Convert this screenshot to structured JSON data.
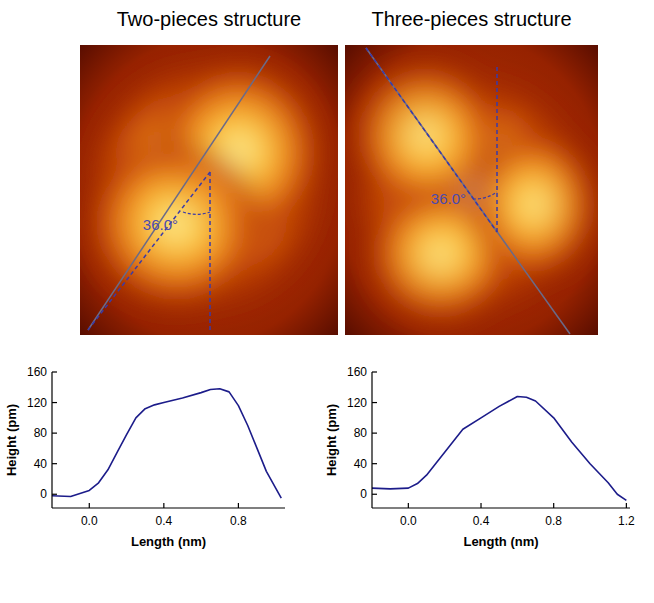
{
  "panels": [
    {
      "title": "Two-pieces structure",
      "angle_label": "36.0°"
    },
    {
      "title": "Three-pieces structure",
      "angle_label": "36.0°"
    }
  ],
  "chart_data": [
    {
      "type": "line",
      "xlabel": "Length (nm)",
      "ylabel": "Height (pm)",
      "color": "#1c1c8a",
      "x": [
        -0.2,
        -0.1,
        0.0,
        0.05,
        0.1,
        0.15,
        0.2,
        0.25,
        0.3,
        0.35,
        0.4,
        0.5,
        0.6,
        0.65,
        0.7,
        0.75,
        0.8,
        0.85,
        0.9,
        0.95,
        1.0,
        1.03
      ],
      "values": [
        -2,
        -3,
        5,
        15,
        32,
        55,
        78,
        100,
        112,
        117,
        120,
        126,
        133,
        137,
        138,
        134,
        116,
        90,
        60,
        30,
        8,
        -5
      ],
      "xlim": [
        -0.2,
        1.05
      ],
      "ylim": [
        -18,
        160
      ],
      "xticks": [
        {
          "value": 0,
          "label": "0.0"
        },
        {
          "value": 0.4,
          "label": "0.4"
        },
        {
          "value": 0.8,
          "label": "0.8"
        }
      ],
      "yticks": [
        0,
        40,
        80,
        120,
        160
      ]
    },
    {
      "type": "line",
      "xlabel": "Length (nm)",
      "ylabel": "Height (pm)",
      "color": "#1c1c8a",
      "x": [
        -0.2,
        -0.1,
        0.0,
        0.05,
        0.1,
        0.15,
        0.2,
        0.3,
        0.4,
        0.5,
        0.6,
        0.65,
        0.7,
        0.8,
        0.9,
        1.0,
        1.1,
        1.15,
        1.2
      ],
      "values": [
        8,
        7,
        8,
        14,
        25,
        40,
        55,
        85,
        100,
        115,
        128,
        127,
        122,
        100,
        68,
        40,
        15,
        0,
        -8
      ],
      "xlim": [
        -0.2,
        1.22
      ],
      "ylim": [
        -18,
        160
      ],
      "xticks": [
        {
          "value": 0,
          "label": "0.0"
        },
        {
          "value": 0.4,
          "label": "0.4"
        },
        {
          "value": 0.8,
          "label": "0.8"
        },
        {
          "value": 1.2,
          "label": "1.2"
        }
      ],
      "yticks": [
        0,
        40,
        80,
        120,
        160
      ]
    }
  ]
}
